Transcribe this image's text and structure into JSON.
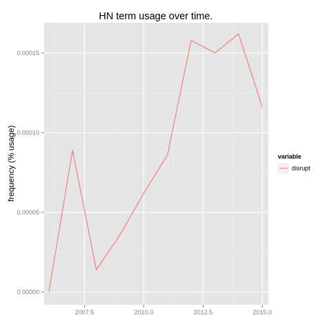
{
  "chart_data": {
    "type": "line",
    "title": "HN term usage over time.",
    "xlabel": "",
    "ylabel": "frequency (% usage)",
    "xlim": [
      2005.8,
      2015.25
    ],
    "ylim": [
      -8e-06,
      0.000169
    ],
    "x_ticks": [
      2007.5,
      2010.0,
      2012.5,
      2015.0
    ],
    "x_tick_labels": [
      "2007.5",
      "2010.0",
      "2012.5",
      "2015.0"
    ],
    "y_ticks": [
      0,
      5e-05,
      0.0001,
      0.00015
    ],
    "y_tick_labels": [
      "0.00000",
      "0.00005",
      "0.00010",
      "0.00015"
    ],
    "grid": true,
    "legend": {
      "title": "variable",
      "position": "right"
    },
    "series": [
      {
        "name": "disrupt",
        "color": "#F8766D",
        "x": [
          2006,
          2007,
          2008,
          2009,
          2010,
          2011,
          2012,
          2013,
          2014,
          2015
        ],
        "y": [
          0.0,
          8.9e-05,
          1.4e-05,
          3.6e-05,
          6.2e-05,
          8.6e-05,
          0.000158,
          0.00015,
          0.000162,
          0.000116
        ]
      }
    ]
  }
}
